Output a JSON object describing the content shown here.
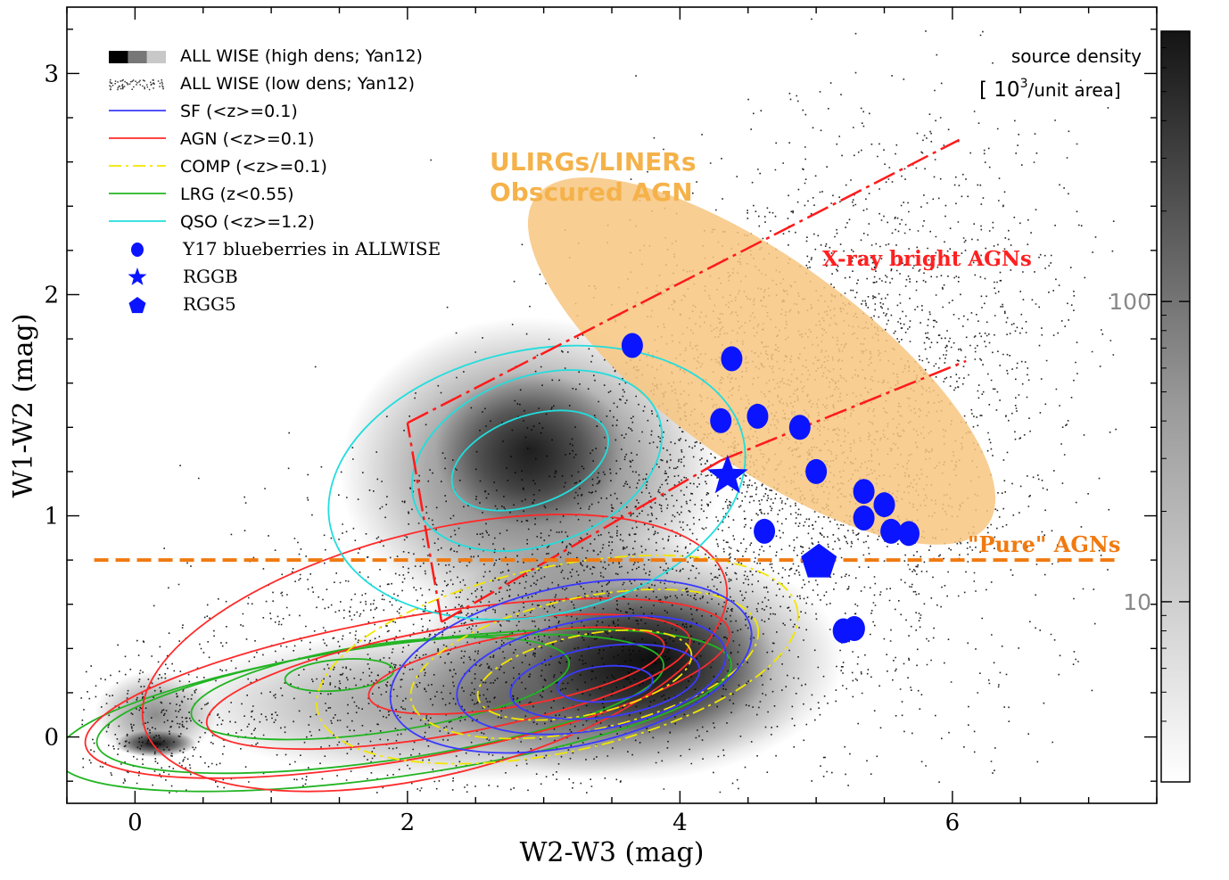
{
  "chart_data": {
    "type": "scatter",
    "title": "",
    "xlabel": "W2-W3 (mag)",
    "ylabel": "W1-W2 (mag)",
    "xlim": [
      -0.5,
      7.5
    ],
    "ylim": [
      -0.3,
      3.3
    ],
    "xticks": [
      0,
      2,
      4,
      6
    ],
    "yticks": [
      0,
      1,
      2,
      3
    ],
    "legend": [
      {
        "key": "allwise_high",
        "label": "ALL WISE (high dens; Yan12)",
        "style": "grayscale-box"
      },
      {
        "key": "allwise_low",
        "label": "ALL WISE (low dens; Yan12)",
        "style": "dots"
      },
      {
        "key": "sf",
        "label": "SF (<z>=0.1)",
        "color": "#3a3aff",
        "style": "solid"
      },
      {
        "key": "agn",
        "label": "AGN (<z>=0.1)",
        "color": "#ff2a2a",
        "style": "solid"
      },
      {
        "key": "comp",
        "label": "COMP (<z>=0.1)",
        "color": "#f2e600",
        "style": "dashdot"
      },
      {
        "key": "lrg",
        "label": "LRG (z<0.55)",
        "color": "#22b422",
        "style": "solid"
      },
      {
        "key": "qso",
        "label": "QSO (<z>=1.2)",
        "color": "#22dddd",
        "style": "solid"
      },
      {
        "key": "y17",
        "label": "Y17 blueberries in ALLWISE",
        "color": "#0a14ff",
        "marker": "circle"
      },
      {
        "key": "rggb",
        "label": "RGGB",
        "color": "#0a14ff",
        "marker": "star"
      },
      {
        "key": "rgg5",
        "label": "RGG5",
        "color": "#0a14ff",
        "marker": "pentagon"
      }
    ],
    "blueberries": [
      {
        "x": 3.65,
        "y": 1.77
      },
      {
        "x": 4.38,
        "y": 1.71
      },
      {
        "x": 4.3,
        "y": 1.43
      },
      {
        "x": 4.57,
        "y": 1.45
      },
      {
        "x": 4.88,
        "y": 1.4
      },
      {
        "x": 5.0,
        "y": 1.2
      },
      {
        "x": 5.35,
        "y": 1.11
      },
      {
        "x": 5.5,
        "y": 1.05
      },
      {
        "x": 5.35,
        "y": 0.99
      },
      {
        "x": 5.55,
        "y": 0.93
      },
      {
        "x": 5.68,
        "y": 0.92
      },
      {
        "x": 4.62,
        "y": 0.93
      },
      {
        "x": 5.2,
        "y": 0.48
      },
      {
        "x": 5.28,
        "y": 0.49
      }
    ],
    "rggb": {
      "x": 4.35,
      "y": 1.18
    },
    "rgg5": {
      "x": 5.02,
      "y": 0.79
    },
    "wedge_vertices": [
      [
        2.0,
        1.42
      ],
      [
        2.25,
        0.52
      ],
      [
        4.3,
        1.25
      ]
    ],
    "wedge_upper_line": {
      "from": [
        2.0,
        1.42
      ],
      "to": [
        6.05,
        2.7
      ]
    },
    "wedge_lower_line": {
      "from": [
        4.3,
        1.25
      ],
      "to": [
        6.1,
        1.7
      ]
    },
    "pure_agn_cut_y": 0.8,
    "region_ellipse": {
      "cx": 4.6,
      "cy": 1.7,
      "rx": 2.05,
      "ry": 0.46,
      "angle_deg": 36
    },
    "annotations": {
      "ulirgs": "ULIRGs/LINERs",
      "obscured": "Obscured AGN",
      "xray": "X-ray bright AGNs",
      "pure": "\"Pure\" AGNs"
    },
    "colorbar": {
      "title": "source density",
      "units_open": "[ 10",
      "units_exp": "3",
      "units_close": "/unit area]",
      "ticks": [
        10,
        100
      ],
      "tick_labels": [
        "10",
        "100"
      ],
      "log_range": [
        0.4,
        2.9
      ]
    },
    "contours": {
      "qso": [
        {
          "cx": 2.9,
          "cy": 1.25,
          "rx": 0.6,
          "ry": 0.2,
          "angle_deg": 20
        },
        {
          "cx": 2.95,
          "cy": 1.25,
          "rx": 0.95,
          "ry": 0.38,
          "angle_deg": 20
        },
        {
          "cx": 2.95,
          "cy": 1.15,
          "rx": 1.55,
          "ry": 0.6,
          "angle_deg": 12
        }
      ],
      "sf": [
        {
          "cx": 3.45,
          "cy": 0.24,
          "rx": 0.35,
          "ry": 0.08,
          "angle_deg": 5
        },
        {
          "cx": 3.45,
          "cy": 0.25,
          "rx": 0.7,
          "ry": 0.16,
          "angle_deg": 8
        },
        {
          "cx": 3.35,
          "cy": 0.28,
          "rx": 1.0,
          "ry": 0.25,
          "angle_deg": 10
        },
        {
          "cx": 3.2,
          "cy": 0.32,
          "rx": 1.35,
          "ry": 0.36,
          "angle_deg": 12
        }
      ],
      "agn": [
        {
          "cx": 2.8,
          "cy": 0.3,
          "rx": 1.1,
          "ry": 0.16,
          "angle_deg": 10
        },
        {
          "cx": 2.3,
          "cy": 0.25,
          "rx": 1.8,
          "ry": 0.24,
          "angle_deg": 10
        },
        {
          "cx": 2.0,
          "cy": 0.22,
          "rx": 2.4,
          "ry": 0.32,
          "angle_deg": 10
        },
        {
          "cx": 2.2,
          "cy": 0.38,
          "rx": 2.2,
          "ry": 0.55,
          "angle_deg": 14
        }
      ],
      "comp": [
        {
          "cx": 3.3,
          "cy": 0.28,
          "rx": 0.8,
          "ry": 0.18,
          "angle_deg": 12
        },
        {
          "cx": 3.3,
          "cy": 0.33,
          "rx": 1.3,
          "ry": 0.3,
          "angle_deg": 12
        },
        {
          "cx": 3.1,
          "cy": 0.35,
          "rx": 1.8,
          "ry": 0.42,
          "angle_deg": 12
        }
      ],
      "lrg": [
        {
          "cx": 1.5,
          "cy": 0.28,
          "rx": 0.4,
          "ry": 0.07,
          "angle_deg": 5
        },
        {
          "cx": 1.8,
          "cy": 0.22,
          "rx": 1.4,
          "ry": 0.2,
          "angle_deg": 8
        },
        {
          "cx": 1.8,
          "cy": 0.15,
          "rx": 2.1,
          "ry": 0.26,
          "angle_deg": 8
        },
        {
          "cx": 1.9,
          "cy": 0.12,
          "rx": 2.5,
          "ry": 0.3,
          "angle_deg": 8
        }
      ]
    },
    "density_blobs": [
      {
        "cx": 0.15,
        "cy": -0.03,
        "rx": 0.3,
        "ry": 0.06,
        "level": 0.95
      },
      {
        "cx": 0.15,
        "cy": 0.1,
        "rx": 0.45,
        "ry": 0.2,
        "level": 0.45
      },
      {
        "cx": 3.6,
        "cy": 0.35,
        "rx": 1.6,
        "ry": 0.55,
        "level": 0.65
      },
      {
        "cx": 3.8,
        "cy": 0.35,
        "rx": 0.9,
        "ry": 0.35,
        "level": 0.85
      },
      {
        "cx": 2.9,
        "cy": 1.2,
        "rx": 1.4,
        "ry": 0.7,
        "level": 0.6
      },
      {
        "cx": 2.9,
        "cy": 1.3,
        "rx": 0.7,
        "ry": 0.35,
        "level": 0.75
      },
      {
        "cx": 2.6,
        "cy": 0.15,
        "rx": 2.3,
        "ry": 0.35,
        "level": 0.45
      }
    ]
  }
}
